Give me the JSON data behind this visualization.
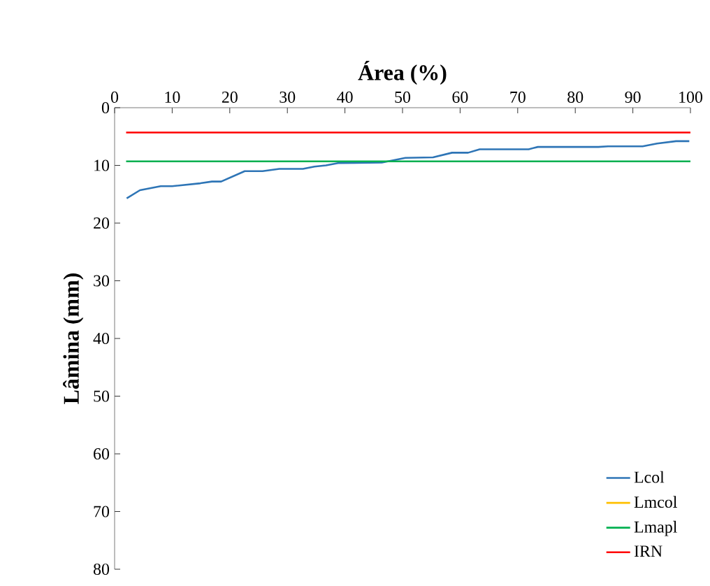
{
  "chart_data": {
    "type": "line",
    "xlabel": "Área (%)",
    "ylabel": "Lâmina (mm)",
    "xlim": [
      0,
      100
    ],
    "xticks": [
      0,
      10,
      20,
      30,
      40,
      50,
      60,
      70,
      80,
      90,
      100
    ],
    "ylim": [
      80,
      0
    ],
    "yticks": [
      0,
      10,
      20,
      30,
      40,
      50,
      60,
      70,
      80
    ],
    "grid": false,
    "legend": "bottom right",
    "series": [
      {
        "name": "Lcol",
        "color": "#2e75b6",
        "x": [
          2.1,
          4.4,
          8,
          10,
          14.9,
          16.9,
          18.5,
          22.6,
          25.7,
          28.6,
          32.7,
          34.7,
          36.7,
          38.8,
          46.4,
          50.5,
          55.3,
          58.6,
          61.4,
          63.4,
          71.9,
          73.5,
          84,
          85.7,
          91.7,
          94.2,
          97.5,
          99.8
        ],
        "values": [
          15.7,
          14.3,
          13.6,
          13.6,
          13.1,
          12.8,
          12.8,
          11,
          11,
          10.6,
          10.6,
          10.2,
          10,
          9.6,
          9.5,
          8.7,
          8.6,
          7.8,
          7.8,
          7.2,
          7.2,
          6.8,
          6.8,
          6.7,
          6.7,
          6.2,
          5.8,
          5.8
        ]
      },
      {
        "name": "Lmcol",
        "color": "#ffc000"
      },
      {
        "name": "Lmapl",
        "color": "#00b050",
        "x": [
          2,
          100
        ],
        "values": [
          9.3,
          9.3
        ]
      },
      {
        "name": "IRN",
        "color": "#ff0000",
        "x": [
          2,
          100
        ],
        "values": [
          4.3,
          4.3
        ]
      }
    ]
  }
}
